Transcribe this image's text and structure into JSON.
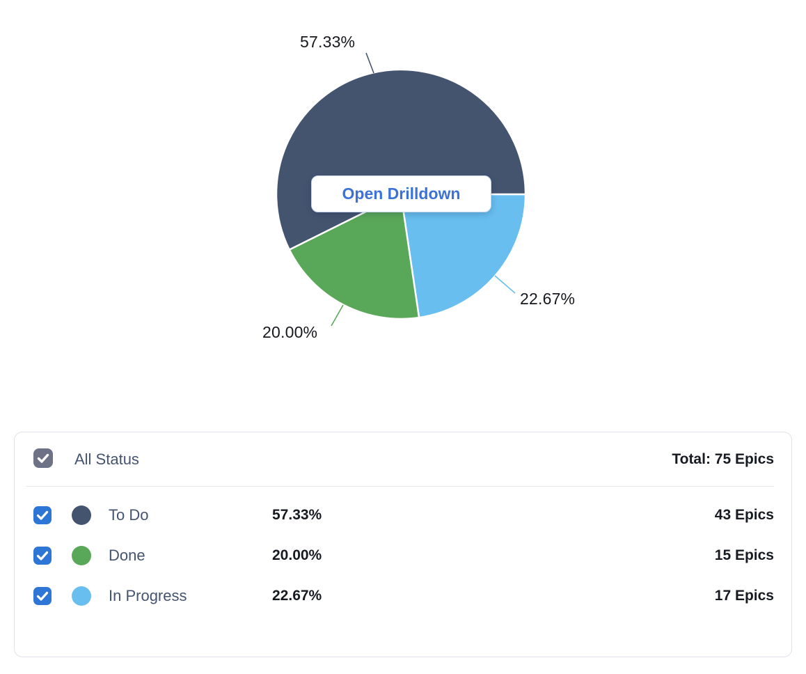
{
  "chart_data": {
    "type": "pie",
    "title": "",
    "total": 75,
    "unit": "Epics",
    "legend_position": "bottom",
    "labels_outside": true,
    "start_angle_deg_clockwise_from_east": 0,
    "slices": [
      {
        "label": "To Do",
        "value": 43,
        "percent": "57.33%",
        "count": "43 Epics",
        "color": "#44546F"
      },
      {
        "label": "Done",
        "value": 15,
        "percent": "20.00%",
        "count": "15 Epics",
        "color": "#59A758"
      },
      {
        "label": "In Progress",
        "value": 17,
        "percent": "22.67%",
        "count": "17 Epics",
        "color": "#67BEEF"
      }
    ]
  },
  "drilldown_button": {
    "label": "Open Drilldown"
  },
  "legend": {
    "header": {
      "label": "All Status",
      "total_label": "Total: 75 Epics",
      "checked": true
    }
  },
  "colors": {
    "checkbox_checked": "#2E76D5",
    "checkbox_header": "#6E7287",
    "checkmark": "#FFFFFF",
    "card_border": "#E0E2E9",
    "divider": "#E7E8EC",
    "label_text": "#44546F",
    "value_text": "#171B21",
    "pie_label_text": "#15181C",
    "button_text": "#3B72D9",
    "button_border": "#C6D4EE",
    "slice_gap_stroke": "#FFFFFF"
  }
}
